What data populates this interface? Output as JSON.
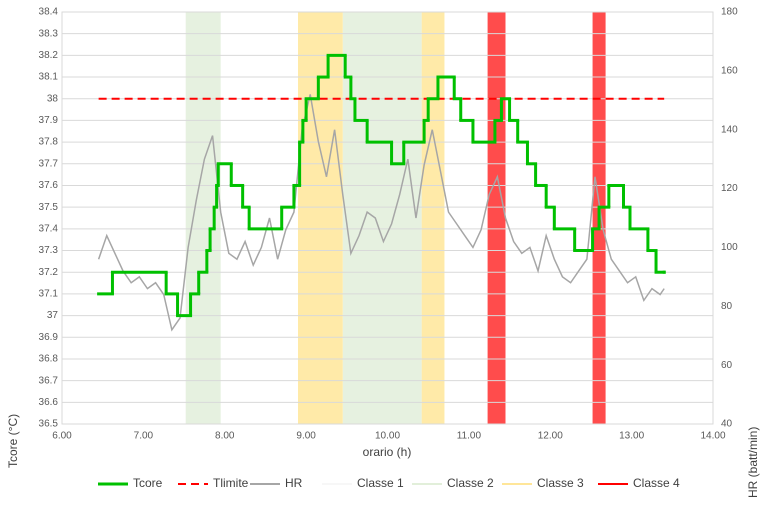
{
  "chart_data": {
    "type": "line",
    "xlabel": "orario (h)",
    "ylabel": "Tcore (°C)",
    "y2label": "HR (batt/min)",
    "xlim": [
      6,
      14
    ],
    "xticks": [
      {
        "value": 6,
        "label": "6.00"
      },
      {
        "value": 7,
        "label": "7.00"
      },
      {
        "value": 8,
        "label": "8.00"
      },
      {
        "value": 9,
        "label": "9.00"
      },
      {
        "value": 10,
        "label": "10.00"
      },
      {
        "value": 11,
        "label": "11.00"
      },
      {
        "value": 12,
        "label": "12.00"
      },
      {
        "value": 13,
        "label": "13.00"
      },
      {
        "value": 14,
        "label": "14.00"
      }
    ],
    "ylim": [
      36.5,
      38.4
    ],
    "yticks": [
      36.5,
      36.6,
      36.7,
      36.8,
      36.9,
      37,
      37.1,
      37.2,
      37.3,
      37.4,
      37.5,
      37.6,
      37.7,
      37.8,
      37.9,
      38,
      38.1,
      38.2,
      38.3,
      38.4
    ],
    "y2lim": [
      40,
      180
    ],
    "y2ticks": [
      40,
      60,
      80,
      100,
      120,
      140,
      160,
      180
    ],
    "grid": true,
    "legend": "bottom",
    "bands": [
      {
        "name": "Classe 1",
        "color": "#f7f7f7",
        "ranges": []
      },
      {
        "name": "Classe 2",
        "color": "#e2efda",
        "ranges": [
          [
            7.52,
            7.95
          ],
          [
            9.45,
            10.42
          ]
        ]
      },
      {
        "name": "Classe 3",
        "color": "#ffe699",
        "ranges": [
          [
            8.9,
            9.45
          ],
          [
            10.42,
            10.7
          ]
        ]
      },
      {
        "name": "Classe 4",
        "color": "#ff0000",
        "ranges": [
          [
            11.23,
            11.45
          ],
          [
            12.52,
            12.68
          ]
        ]
      }
    ],
    "series": [
      {
        "name": "Tcore",
        "color": "#00c000",
        "step": true,
        "x": [
          6.45,
          6.62,
          7.28,
          7.42,
          7.58,
          7.68,
          7.78,
          7.82,
          7.87,
          7.9,
          7.92,
          8.08,
          8.22,
          8.3,
          8.7,
          8.85,
          8.92,
          8.96,
          9.0,
          9.15,
          9.27,
          9.48,
          9.55,
          9.6,
          9.75,
          10.05,
          10.2,
          10.45,
          10.5,
          10.62,
          10.82,
          10.9,
          11.05,
          11.32,
          11.4,
          11.5,
          11.6,
          11.72,
          11.82,
          11.95,
          12.05,
          12.3,
          12.52,
          12.6,
          12.72,
          12.9,
          12.98,
          13.2,
          13.3,
          13.4
        ],
        "values": [
          37.1,
          37.2,
          37.1,
          37.0,
          37.1,
          37.2,
          37.3,
          37.4,
          37.5,
          37.6,
          37.7,
          37.6,
          37.5,
          37.4,
          37.5,
          37.6,
          37.8,
          37.9,
          38.0,
          38.1,
          38.2,
          38.1,
          38.0,
          37.9,
          37.8,
          37.7,
          37.8,
          37.9,
          38.0,
          38.1,
          38.0,
          37.9,
          37.8,
          37.9,
          38.0,
          37.9,
          37.8,
          37.7,
          37.6,
          37.5,
          37.4,
          37.3,
          37.4,
          37.5,
          37.6,
          37.5,
          37.4,
          37.3,
          37.2,
          37.2
        ]
      },
      {
        "name": "Tlimite",
        "color": "#ff0000",
        "dashed": true,
        "x": [
          6.45,
          13.4
        ],
        "values": [
          38,
          38
        ]
      },
      {
        "name": "HR",
        "color": "#a6a6a6",
        "axis": "y2",
        "x": [
          6.45,
          6.55,
          6.65,
          6.75,
          6.85,
          6.95,
          7.05,
          7.15,
          7.25,
          7.35,
          7.45,
          7.55,
          7.65,
          7.75,
          7.85,
          7.95,
          8.05,
          8.15,
          8.25,
          8.35,
          8.45,
          8.55,
          8.65,
          8.75,
          8.85,
          8.95,
          9.05,
          9.15,
          9.25,
          9.35,
          9.45,
          9.55,
          9.65,
          9.75,
          9.85,
          9.95,
          10.05,
          10.15,
          10.25,
          10.35,
          10.45,
          10.55,
          10.65,
          10.75,
          10.85,
          10.95,
          11.05,
          11.15,
          11.25,
          11.35,
          11.45,
          11.55,
          11.65,
          11.75,
          11.85,
          11.95,
          12.05,
          12.15,
          12.25,
          12.35,
          12.45,
          12.55,
          12.65,
          12.75,
          12.85,
          12.95,
          13.05,
          13.15,
          13.25,
          13.35,
          13.4
        ],
        "values": [
          96,
          104,
          98,
          92,
          88,
          90,
          86,
          88,
          84,
          72,
          76,
          100,
          116,
          130,
          138,
          112,
          98,
          96,
          102,
          94,
          100,
          110,
          96,
          106,
          112,
          140,
          152,
          136,
          124,
          140,
          118,
          98,
          104,
          112,
          110,
          102,
          108,
          118,
          130,
          110,
          128,
          140,
          126,
          112,
          108,
          104,
          100,
          106,
          118,
          124,
          110,
          102,
          98,
          100,
          92,
          104,
          96,
          90,
          88,
          92,
          96,
          124,
          106,
          96,
          92,
          88,
          90,
          82,
          86,
          84,
          86
        ]
      }
    ]
  }
}
